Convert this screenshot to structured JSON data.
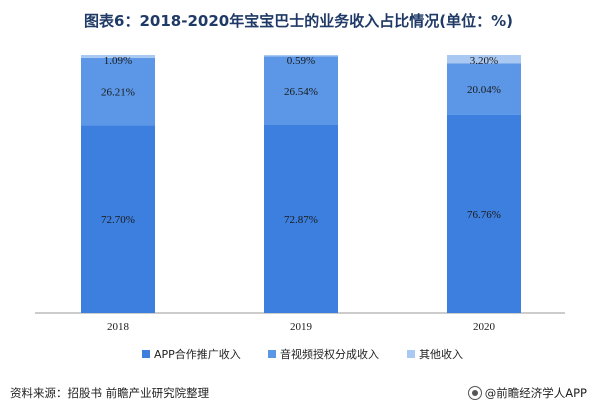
{
  "title": "图表6：2018-2020年宝宝巴士的业务收入占比情况(单位：%)",
  "chart_data": {
    "type": "bar",
    "stacked": true,
    "title": "图表6：2018-2020年宝宝巴士的业务收入占比情况(单位：%)",
    "categories": [
      "2018",
      "2019",
      "2020"
    ],
    "ylim": [
      0,
      100
    ],
    "series": [
      {
        "name": "APP合作推广收入",
        "color": "#3d7fde",
        "values": [
          72.7,
          72.87,
          76.76
        ],
        "labels": [
          "72.70%",
          "72.87%",
          "76.76%"
        ]
      },
      {
        "name": "音视频授权分成收入",
        "color": "#5b97e6",
        "values": [
          26.21,
          26.54,
          20.04
        ],
        "labels": [
          "26.21%",
          "26.54%",
          "20.04%"
        ]
      },
      {
        "name": "其他收入",
        "color": "#a9c9f2",
        "values": [
          1.09,
          0.59,
          3.2
        ],
        "labels": [
          "1.09%",
          "0.59%",
          "3.20%"
        ]
      }
    ],
    "legend_position": "bottom"
  },
  "footer": {
    "source": "资料来源：招股书 前瞻产业研究院整理",
    "brand": "@前瞻经济学人APP"
  }
}
